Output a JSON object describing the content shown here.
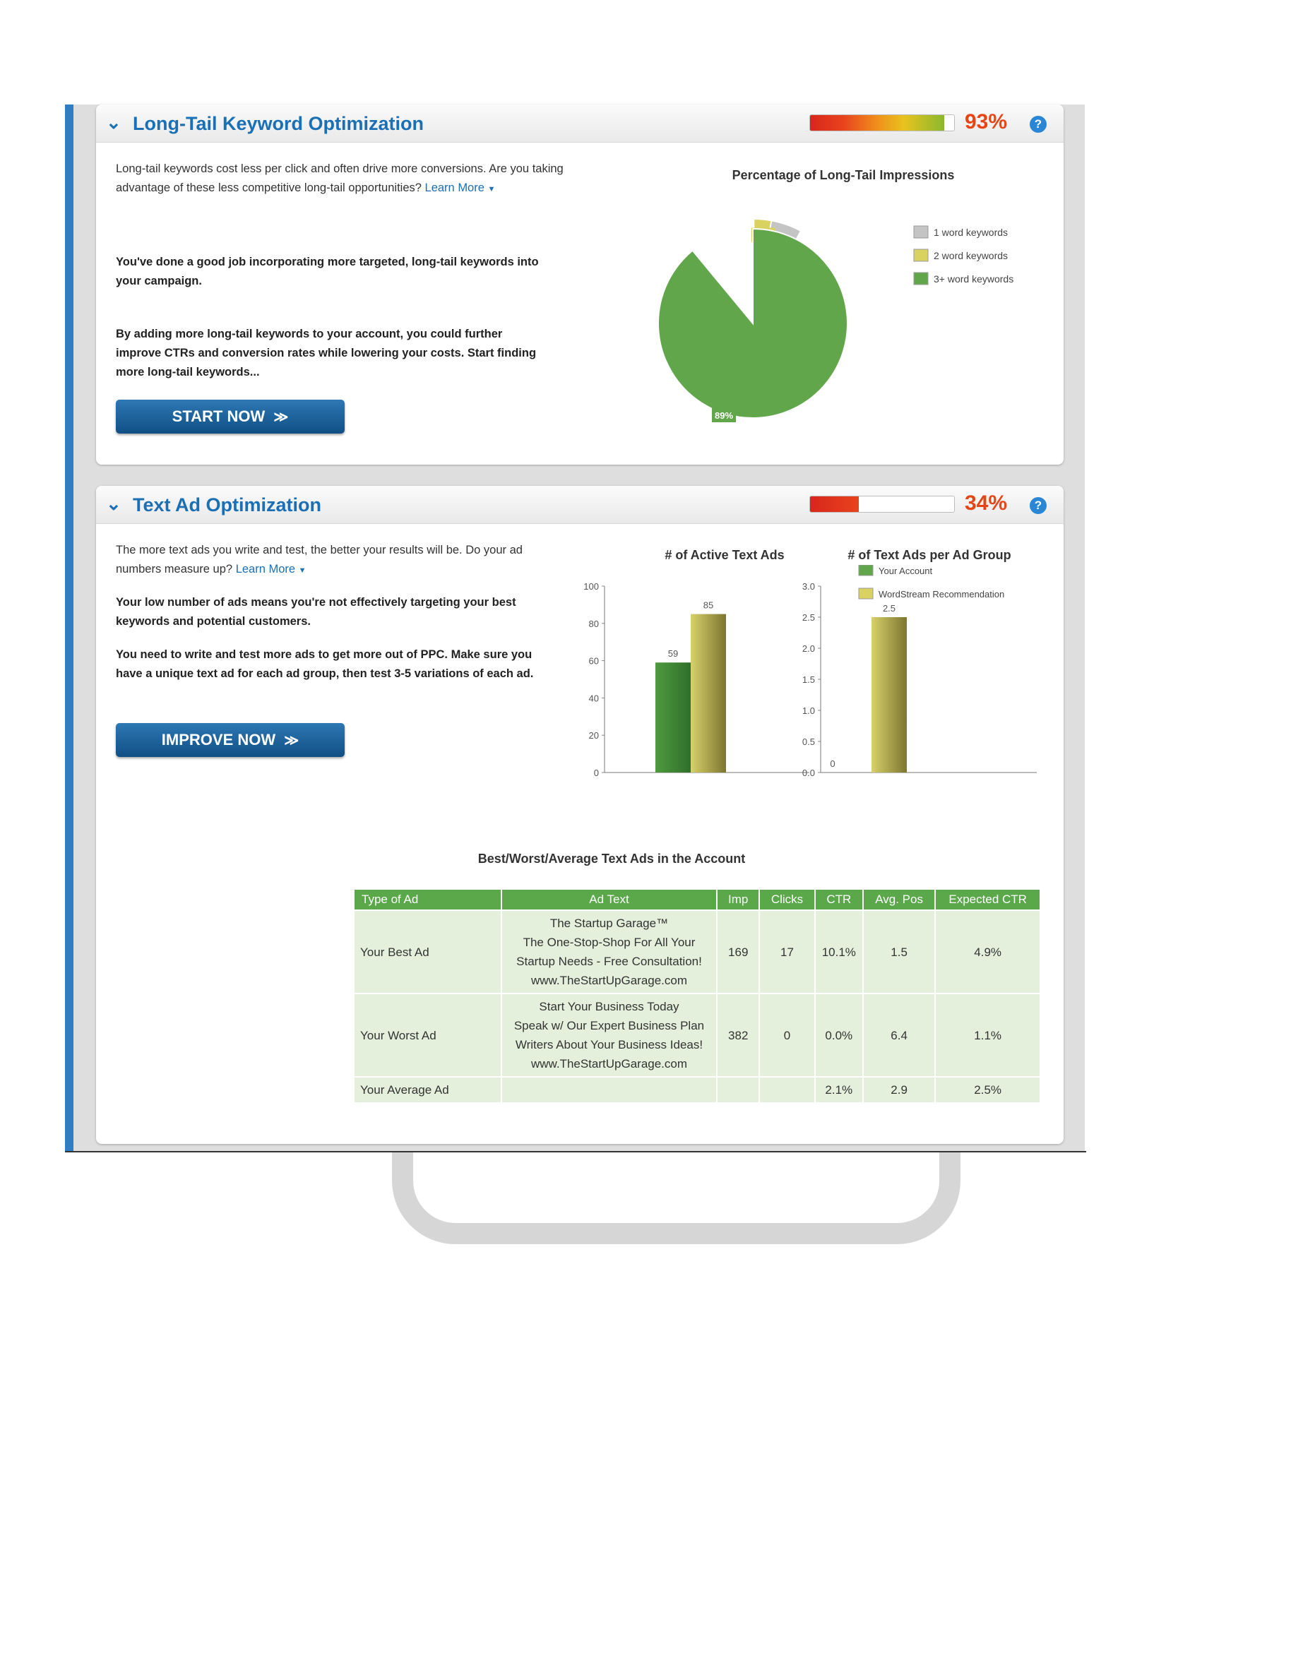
{
  "longtail": {
    "title": "Long-Tail Keyword Optimization",
    "score_label": "93%",
    "score_fraction": 0.93,
    "intro": "Long-tail keywords cost less per click and often drive more conversions. Are you taking advantage of these less competitive long-tail opportunities?",
    "learn_more": "Learn More",
    "good_job": "You've done a good job incorporating more targeted, long-tail keywords into your campaign.",
    "advice": "By adding more long-tail keywords to your account, you could further improve CTRs and conversion rates while lowering your costs. Start finding more long-tail keywords...",
    "cta": "START NOW"
  },
  "textad": {
    "title": "Text Ad Optimization",
    "score_label": "34%",
    "score_fraction": 0.34,
    "intro": "The more text ads you write and test, the better your results will be. Do your ad numbers measure up?",
    "learn_more": "Learn More",
    "finding": "Your low number of ads means you're not effectively targeting your best keywords and potential customers.",
    "advice": "You need to write and test more ads to get more out of PPC. Make sure you have a unique text ad for each ad group, then test 3-5 variations of each ad.",
    "cta": "IMPROVE NOW",
    "table_title": "Best/Worst/Average Text Ads in the Account",
    "table": {
      "headers": [
        "Type of Ad",
        "Ad Text",
        "Imp",
        "Clicks",
        "CTR",
        "Avg. Pos",
        "Expected CTR"
      ],
      "rows": [
        {
          "type": "Your Best Ad",
          "text": [
            "The Startup Garage™",
            "The One-Stop-Shop For All Your",
            "Startup Needs - Free Consultation!",
            "www.TheStartUpGarage.com"
          ],
          "imp": "169",
          "clicks": "17",
          "ctr": "10.1%",
          "pos": "1.5",
          "exp": "4.9%"
        },
        {
          "type": "Your Worst Ad",
          "text": [
            "Start Your Business Today",
            "Speak w/ Our Expert Business Plan",
            "Writers About Your Business Ideas!",
            "www.TheStartUpGarage.com"
          ],
          "imp": "382",
          "clicks": "0",
          "ctr": "0.0%",
          "pos": "6.4",
          "exp": "1.1%"
        },
        {
          "type": "Your Average Ad",
          "text": [],
          "imp": "",
          "clicks": "",
          "ctr": "2.1%",
          "pos": "2.9",
          "exp": "2.5%"
        }
      ]
    }
  },
  "colors": {
    "accent": "#1b6fb5",
    "score": "#e74516",
    "green": "#62a64b",
    "yellow": "#d9d160",
    "gray": "#c4c4c4",
    "table_header": "#5aa84a"
  },
  "icons": {
    "chevron": "chevron-down-icon",
    "help": "help-icon",
    "cta_arrows": "double-chevron-right-icon"
  },
  "chart_data": [
    {
      "type": "pie",
      "title": "Percentage of Long-Tail Impressions",
      "series": [
        {
          "name": "1 word keywords",
          "value": 8,
          "label": "8%",
          "color": "#c4c4c4"
        },
        {
          "name": "2 word keywords",
          "value": 3,
          "label": "3%",
          "color": "#d9d160"
        },
        {
          "name": "3+ word keywords",
          "value": 89,
          "label": "89%",
          "color": "#62a64b"
        }
      ],
      "legend": "right"
    },
    {
      "type": "bar",
      "title": "# of Active Text Ads",
      "categories": [
        ""
      ],
      "series": [
        {
          "name": "Your Account",
          "values": [
            59
          ],
          "color": "#62a64b"
        },
        {
          "name": "WordStream Recommendation",
          "values": [
            85
          ],
          "color": "#d9d160"
        }
      ],
      "ylim": [
        0,
        100
      ],
      "yticks": [
        "0",
        "20",
        "40",
        "60",
        "80",
        "100"
      ]
    },
    {
      "type": "bar",
      "title": "# of Text Ads per Ad Group",
      "categories": [
        ""
      ],
      "series": [
        {
          "name": "Your Account",
          "values": [
            0
          ],
          "color": "#62a64b"
        },
        {
          "name": "WordStream Recommendation",
          "values": [
            2.5
          ],
          "color": "#d9d160"
        }
      ],
      "ylim": [
        0,
        3
      ],
      "yticks": [
        "0.0",
        "0.5",
        "1.0",
        "1.5",
        "2.0",
        "2.5",
        "3.0"
      ],
      "legend": "top"
    }
  ]
}
